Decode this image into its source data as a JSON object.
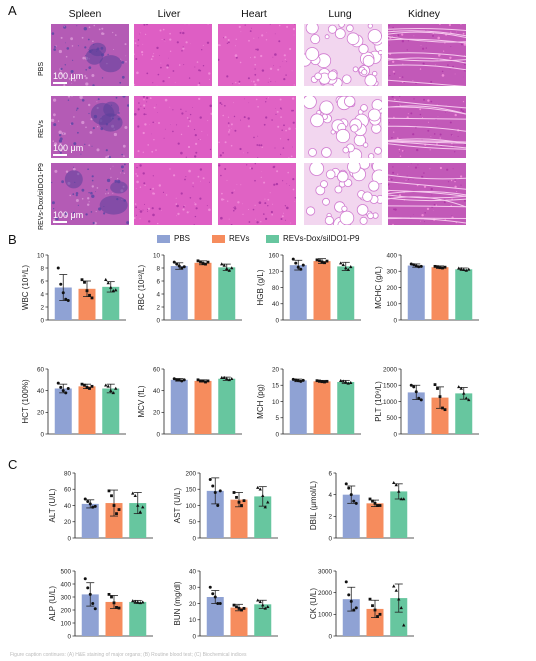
{
  "panels": {
    "A": "A",
    "B": "B",
    "C": "C"
  },
  "histology": {
    "tissues": [
      "Spleen",
      "Liver",
      "Heart",
      "Lung",
      "Kidney"
    ],
    "groups": [
      "PBS",
      "REVs",
      "REVs-Dox/siIDO1-P9"
    ],
    "scale_label": "100 μm"
  },
  "colors": {
    "PBS": "#8fa2d4",
    "REVs": "#f68c5d",
    "REVs-Dox/siIDO1-P9": "#67c69f"
  },
  "legend": [
    "PBS",
    "REVs",
    "REVs-Dox/siIDO1-P9"
  ],
  "footer_text": "Figure caption continues: (A) H&E staining of major organs; (B) Routine blood test; (C) Biochemical indices",
  "chart_data": [
    {
      "type": "bar",
      "ylabel": "WBC (10⁹/L)",
      "ylim": [
        0,
        10
      ],
      "yticks": [
        0,
        2,
        4,
        6,
        8,
        10
      ],
      "categories": [
        "PBS",
        "REVs",
        "REVs-Dox/siIDO1-P9"
      ],
      "values": [
        5.0,
        4.8,
        5.1
      ],
      "errors": [
        2.0,
        1.2,
        0.8
      ],
      "points": [
        [
          8.0,
          5.5,
          4.2,
          3.2,
          3.0
        ],
        [
          6.2,
          5.8,
          4.5,
          3.8,
          3.4
        ],
        [
          6.2,
          5.7,
          5.0,
          4.5,
          4.6
        ]
      ]
    },
    {
      "type": "bar",
      "ylabel": "RBC (10¹²/L)",
      "ylim": [
        0,
        10
      ],
      "yticks": [
        0,
        2,
        4,
        6,
        8,
        10
      ],
      "categories": [
        "PBS",
        "REVs",
        "REVs-Dox/siIDO1-P9"
      ],
      "values": [
        8.3,
        8.8,
        8.1
      ],
      "errors": [
        0.5,
        0.3,
        0.5
      ],
      "points": [
        [
          8.9,
          8.6,
          8.3,
          8.0,
          8.2
        ],
        [
          9.1,
          8.9,
          8.7,
          8.6,
          8.9
        ],
        [
          8.6,
          8.4,
          7.9,
          7.6,
          8.0
        ]
      ]
    },
    {
      "type": "bar",
      "ylabel": "HGB (g/L)",
      "ylim": [
        0,
        160
      ],
      "yticks": [
        0,
        40,
        80,
        120,
        160
      ],
      "categories": [
        "PBS",
        "REVs",
        "REVs-Dox/siIDO1-P9"
      ],
      "values": [
        135,
        145,
        132
      ],
      "errors": [
        12,
        6,
        10
      ],
      "points": [
        [
          150,
          140,
          130,
          125,
          135
        ],
        [
          148,
          146,
          143,
          141,
          145
        ],
        [
          140,
          136,
          128,
          124,
          131
        ]
      ]
    },
    {
      "type": "bar",
      "ylabel": "MCHC (g/L)",
      "ylim": [
        0,
        400
      ],
      "yticks": [
        0,
        100,
        200,
        300,
        400
      ],
      "categories": [
        "PBS",
        "REVs",
        "REVs-Dox/siIDO1-P9"
      ],
      "values": [
        335,
        325,
        312
      ],
      "errors": [
        10,
        8,
        8
      ],
      "points": [
        [
          345,
          340,
          332,
          328,
          330
        ],
        [
          330,
          328,
          322,
          320,
          325
        ],
        [
          318,
          315,
          310,
          305,
          312
        ]
      ]
    },
    {
      "type": "bar",
      "ylabel": "HCT (100%)",
      "ylim": [
        0,
        60
      ],
      "yticks": [
        0,
        20,
        40,
        60
      ],
      "categories": [
        "PBS",
        "REVs",
        "REVs-Dox/siIDO1-P9"
      ],
      "values": [
        42,
        44,
        42
      ],
      "errors": [
        4,
        2,
        4
      ],
      "points": [
        [
          47,
          43,
          40,
          38,
          42
        ],
        [
          46,
          45,
          43,
          42,
          44
        ],
        [
          45,
          44,
          40,
          38,
          42
        ]
      ]
    },
    {
      "type": "bar",
      "ylabel": "MCV (fL)",
      "ylim": [
        0,
        60
      ],
      "yticks": [
        0,
        20,
        40,
        60
      ],
      "categories": [
        "PBS",
        "REVs",
        "REVs-Dox/siIDO1-P9"
      ],
      "values": [
        50,
        49,
        51
      ],
      "errors": [
        1.2,
        1,
        1.5
      ],
      "points": [
        [
          51,
          50,
          50,
          49,
          50
        ],
        [
          50,
          49,
          49,
          48,
          49
        ],
        [
          52,
          52,
          51,
          50,
          51
        ]
      ]
    },
    {
      "type": "bar",
      "ylabel": "MCH (pg)",
      "ylim": [
        0,
        20
      ],
      "yticks": [
        0,
        5,
        10,
        15,
        20
      ],
      "categories": [
        "PBS",
        "REVs",
        "REVs-Dox/siIDO1-P9"
      ],
      "values": [
        16.5,
        16.2,
        16.0
      ],
      "errors": [
        0.4,
        0.3,
        0.5
      ],
      "points": [
        [
          16.8,
          16.6,
          16.4,
          16.2,
          16.5
        ],
        [
          16.4,
          16.3,
          16.1,
          16.0,
          16.2
        ],
        [
          16.4,
          16.2,
          16.0,
          15.6,
          15.8
        ]
      ]
    },
    {
      "type": "bar",
      "ylabel": "PLT (10⁹/L)",
      "ylim": [
        0,
        2000
      ],
      "yticks": [
        0,
        500,
        1000,
        1500,
        2000
      ],
      "categories": [
        "PBS",
        "REVs",
        "REVs-Dox/siIDO1-P9"
      ],
      "values": [
        1280,
        1120,
        1250
      ],
      "errors": [
        220,
        330,
        180
      ],
      "points": [
        [
          1500,
          1450,
          1300,
          1100,
          1050
        ],
        [
          1520,
          1400,
          1150,
          800,
          750
        ],
        [
          1450,
          1400,
          1250,
          1100,
          1050
        ]
      ]
    },
    {
      "type": "bar",
      "ylabel": "ALT (U/L)",
      "ylim": [
        0,
        80
      ],
      "yticks": [
        0,
        20,
        40,
        60,
        80
      ],
      "categories": [
        "PBS",
        "REVs",
        "REVs-Dox/siIDO1-P9"
      ],
      "values": [
        42,
        43,
        43
      ],
      "errors": [
        5,
        16,
        13
      ],
      "points": [
        [
          48,
          45,
          42,
          38,
          39
        ],
        [
          58,
          52,
          40,
          30,
          35
        ],
        [
          55,
          52,
          40,
          32,
          38
        ]
      ]
    },
    {
      "type": "bar",
      "ylabel": "AST (U/L)",
      "ylim": [
        0,
        200
      ],
      "yticks": [
        0,
        50,
        100,
        150,
        200
      ],
      "categories": [
        "PBS",
        "REVs",
        "REVs-Dox/siIDO1-P9"
      ],
      "values": [
        145,
        118,
        128
      ],
      "errors": [
        40,
        22,
        30
      ],
      "points": [
        [
          180,
          160,
          140,
          100,
          145
        ],
        [
          140,
          125,
          110,
          100,
          115
        ],
        [
          155,
          150,
          130,
          95,
          110
        ]
      ]
    },
    {
      "type": "bar",
      "ylabel": "DBIL (μmol/L)",
      "ylim": [
        0,
        6
      ],
      "yticks": [
        0,
        2,
        4,
        6
      ],
      "categories": [
        "PBS",
        "REVs",
        "REVs-Dox/siIDO1-P9"
      ],
      "values": [
        4.0,
        3.2,
        4.3
      ],
      "errors": [
        0.8,
        0.3,
        0.7
      ],
      "points": [
        [
          5.0,
          4.6,
          4.0,
          3.4,
          3.2
        ],
        [
          3.6,
          3.4,
          3.2,
          3.0,
          3.0
        ],
        [
          5.1,
          4.9,
          4.3,
          3.6,
          3.6
        ]
      ]
    },
    {
      "type": "bar",
      "ylabel": "ALP (U/L)",
      "ylim": [
        0,
        500
      ],
      "yticks": [
        0,
        100,
        200,
        300,
        400,
        500
      ],
      "categories": [
        "PBS",
        "REVs",
        "REVs-Dox/siIDO1-P9"
      ],
      "values": [
        320,
        262,
        262
      ],
      "errors": [
        90,
        50,
        12
      ],
      "points": [
        [
          440,
          370,
          320,
          250,
          210
        ],
        [
          320,
          300,
          255,
          220,
          215
        ],
        [
          270,
          265,
          260,
          255,
          260
        ]
      ]
    },
    {
      "type": "bar",
      "ylabel": "BUN (mg/dl)",
      "ylim": [
        0,
        40
      ],
      "yticks": [
        0,
        10,
        20,
        30,
        40
      ],
      "categories": [
        "PBS",
        "REVs",
        "REVs-Dox/siIDO1-P9"
      ],
      "values": [
        24,
        17.5,
        19.5
      ],
      "errors": [
        4,
        2,
        2.5
      ],
      "points": [
        [
          30,
          26,
          24,
          20,
          20
        ],
        [
          19,
          18,
          17,
          16,
          17
        ],
        [
          22,
          21,
          19,
          17,
          18
        ]
      ]
    },
    {
      "type": "bar",
      "ylabel": "CK (U/L)",
      "ylim": [
        0,
        3000
      ],
      "yticks": [
        0,
        1000,
        2000,
        3000
      ],
      "categories": [
        "PBS",
        "REVs",
        "REVs-Dox/siIDO1-P9"
      ],
      "values": [
        1700,
        1250,
        1750
      ],
      "errors": [
        550,
        400,
        650
      ],
      "points": [
        [
          2500,
          1900,
          1600,
          1200,
          1300
        ],
        [
          1700,
          1400,
          1200,
          900,
          1000
        ],
        [
          2300,
          2100,
          1700,
          1300,
          500
        ]
      ]
    }
  ]
}
